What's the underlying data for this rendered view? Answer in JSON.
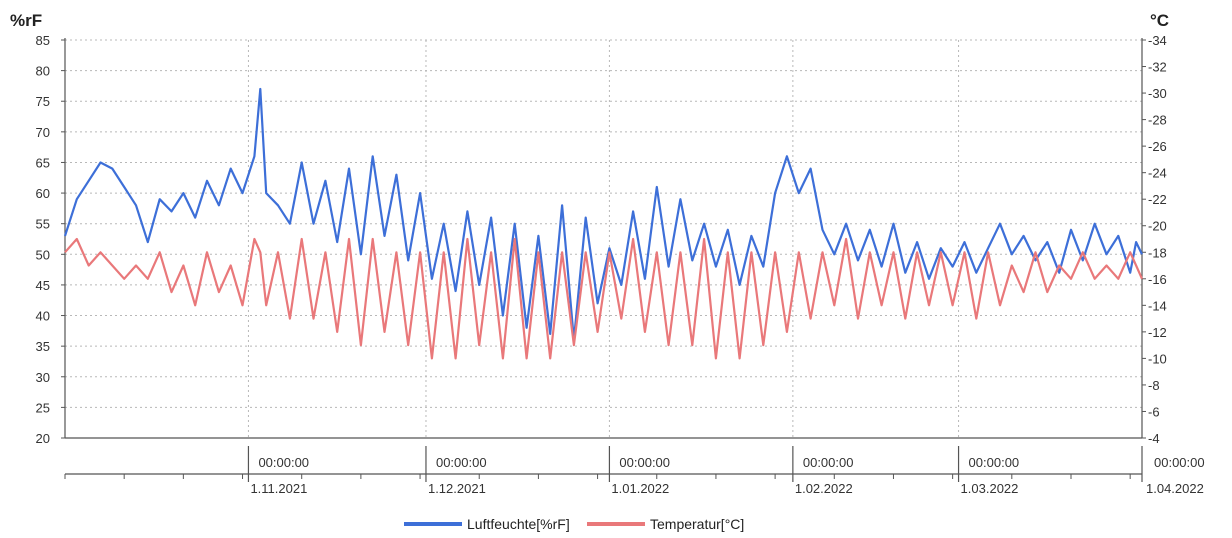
{
  "chart_data": {
    "type": "line",
    "left_axis_label": "%rF",
    "right_axis_label": "°C",
    "left_ylim": [
      20,
      85
    ],
    "right_ylim": [
      4,
      34
    ],
    "left_ticks": [
      20,
      25,
      30,
      35,
      40,
      45,
      50,
      55,
      60,
      65,
      70,
      75,
      80,
      85
    ],
    "right_ticks": [
      4,
      6,
      8,
      10,
      12,
      14,
      16,
      18,
      20,
      22,
      24,
      26,
      28,
      30,
      32,
      34
    ],
    "x_range": [
      "2021-10-01",
      "2022-04-01"
    ],
    "x_ticks": [
      {
        "date": "2021-11-01",
        "time": "00:00:00",
        "label": "1.11.2021"
      },
      {
        "date": "2021-12-01",
        "time": "00:00:00",
        "label": "1.12.2021"
      },
      {
        "date": "2022-01-01",
        "time": "00:00:00",
        "label": "1.01.2022"
      },
      {
        "date": "2022-02-01",
        "time": "00:00:00",
        "label": "1.02.2022"
      },
      {
        "date": "2022-03-01",
        "time": "00:00:00",
        "label": "1.03.2022"
      },
      {
        "date": "2022-04-01",
        "time": "00:00:00",
        "label": "1.04.2022"
      }
    ],
    "grid": true,
    "legend_position": "bottom-center",
    "series": [
      {
        "name": "Luftfeuchte[%rF]",
        "axis": "left",
        "color": "#3d6fd8",
        "points": [
          [
            "2021-10-01",
            53
          ],
          [
            "2021-10-03",
            59
          ],
          [
            "2021-10-05",
            62
          ],
          [
            "2021-10-07",
            65
          ],
          [
            "2021-10-09",
            64
          ],
          [
            "2021-10-11",
            61
          ],
          [
            "2021-10-13",
            58
          ],
          [
            "2021-10-15",
            52
          ],
          [
            "2021-10-17",
            59
          ],
          [
            "2021-10-19",
            57
          ],
          [
            "2021-10-21",
            60
          ],
          [
            "2021-10-23",
            56
          ],
          [
            "2021-10-25",
            62
          ],
          [
            "2021-10-27",
            58
          ],
          [
            "2021-10-29",
            64
          ],
          [
            "2021-10-31",
            60
          ],
          [
            "2021-11-02",
            66
          ],
          [
            "2021-11-03",
            77
          ],
          [
            "2021-11-04",
            60
          ],
          [
            "2021-11-06",
            58
          ],
          [
            "2021-11-08",
            55
          ],
          [
            "2021-11-10",
            65
          ],
          [
            "2021-11-12",
            55
          ],
          [
            "2021-11-14",
            62
          ],
          [
            "2021-11-16",
            52
          ],
          [
            "2021-11-18",
            64
          ],
          [
            "2021-11-20",
            50
          ],
          [
            "2021-11-22",
            66
          ],
          [
            "2021-11-24",
            53
          ],
          [
            "2021-11-26",
            63
          ],
          [
            "2021-11-28",
            49
          ],
          [
            "2021-11-30",
            60
          ],
          [
            "2021-12-02",
            46
          ],
          [
            "2021-12-04",
            55
          ],
          [
            "2021-12-06",
            44
          ],
          [
            "2021-12-08",
            57
          ],
          [
            "2021-12-10",
            45
          ],
          [
            "2021-12-12",
            56
          ],
          [
            "2021-12-14",
            40
          ],
          [
            "2021-12-16",
            55
          ],
          [
            "2021-12-18",
            38
          ],
          [
            "2021-12-20",
            53
          ],
          [
            "2021-12-22",
            37
          ],
          [
            "2021-12-24",
            58
          ],
          [
            "2021-12-26",
            36
          ],
          [
            "2021-12-28",
            56
          ],
          [
            "2021-12-30",
            42
          ],
          [
            "2022-01-01",
            51
          ],
          [
            "2022-01-03",
            45
          ],
          [
            "2022-01-05",
            57
          ],
          [
            "2022-01-07",
            46
          ],
          [
            "2022-01-09",
            61
          ],
          [
            "2022-01-11",
            48
          ],
          [
            "2022-01-13",
            59
          ],
          [
            "2022-01-15",
            49
          ],
          [
            "2022-01-17",
            55
          ],
          [
            "2022-01-19",
            48
          ],
          [
            "2022-01-21",
            54
          ],
          [
            "2022-01-23",
            45
          ],
          [
            "2022-01-25",
            53
          ],
          [
            "2022-01-27",
            48
          ],
          [
            "2022-01-29",
            60
          ],
          [
            "2022-01-31",
            66
          ],
          [
            "2022-02-02",
            60
          ],
          [
            "2022-02-04",
            64
          ],
          [
            "2022-02-06",
            54
          ],
          [
            "2022-02-08",
            50
          ],
          [
            "2022-02-10",
            55
          ],
          [
            "2022-02-12",
            49
          ],
          [
            "2022-02-14",
            54
          ],
          [
            "2022-02-16",
            48
          ],
          [
            "2022-02-18",
            55
          ],
          [
            "2022-02-20",
            47
          ],
          [
            "2022-02-22",
            52
          ],
          [
            "2022-02-24",
            46
          ],
          [
            "2022-02-26",
            51
          ],
          [
            "2022-02-28",
            48
          ],
          [
            "2022-03-02",
            52
          ],
          [
            "2022-03-04",
            47
          ],
          [
            "2022-03-06",
            51
          ],
          [
            "2022-03-08",
            55
          ],
          [
            "2022-03-10",
            50
          ],
          [
            "2022-03-12",
            53
          ],
          [
            "2022-03-14",
            49
          ],
          [
            "2022-03-16",
            52
          ],
          [
            "2022-03-18",
            47
          ],
          [
            "2022-03-20",
            54
          ],
          [
            "2022-03-22",
            49
          ],
          [
            "2022-03-24",
            55
          ],
          [
            "2022-03-26",
            50
          ],
          [
            "2022-03-28",
            53
          ],
          [
            "2022-03-30",
            47
          ],
          [
            "2022-03-31",
            52
          ],
          [
            "2022-04-01",
            50
          ]
        ]
      },
      {
        "name": "Temperatur[°C]",
        "axis": "right",
        "color": "#e9787a",
        "points": [
          [
            "2021-10-01",
            18
          ],
          [
            "2021-10-03",
            19
          ],
          [
            "2021-10-05",
            17
          ],
          [
            "2021-10-07",
            18
          ],
          [
            "2021-10-09",
            17
          ],
          [
            "2021-10-11",
            16
          ],
          [
            "2021-10-13",
            17
          ],
          [
            "2021-10-15",
            16
          ],
          [
            "2021-10-17",
            18
          ],
          [
            "2021-10-19",
            15
          ],
          [
            "2021-10-21",
            17
          ],
          [
            "2021-10-23",
            14
          ],
          [
            "2021-10-25",
            18
          ],
          [
            "2021-10-27",
            15
          ],
          [
            "2021-10-29",
            17
          ],
          [
            "2021-10-31",
            14
          ],
          [
            "2021-11-02",
            19
          ],
          [
            "2021-11-03",
            18
          ],
          [
            "2021-11-04",
            14
          ],
          [
            "2021-11-06",
            18
          ],
          [
            "2021-11-08",
            13
          ],
          [
            "2021-11-10",
            19
          ],
          [
            "2021-11-12",
            13
          ],
          [
            "2021-11-14",
            18
          ],
          [
            "2021-11-16",
            12
          ],
          [
            "2021-11-18",
            19
          ],
          [
            "2021-11-20",
            11
          ],
          [
            "2021-11-22",
            19
          ],
          [
            "2021-11-24",
            12
          ],
          [
            "2021-11-26",
            18
          ],
          [
            "2021-11-28",
            11
          ],
          [
            "2021-11-30",
            18
          ],
          [
            "2021-12-02",
            10
          ],
          [
            "2021-12-04",
            18
          ],
          [
            "2021-12-06",
            10
          ],
          [
            "2021-12-08",
            19
          ],
          [
            "2021-12-10",
            11
          ],
          [
            "2021-12-12",
            18
          ],
          [
            "2021-12-14",
            10
          ],
          [
            "2021-12-16",
            19
          ],
          [
            "2021-12-18",
            10
          ],
          [
            "2021-12-20",
            18
          ],
          [
            "2021-12-22",
            10
          ],
          [
            "2021-12-24",
            18
          ],
          [
            "2021-12-26",
            11
          ],
          [
            "2021-12-28",
            18
          ],
          [
            "2021-12-30",
            12
          ],
          [
            "2022-01-01",
            18
          ],
          [
            "2022-01-03",
            13
          ],
          [
            "2022-01-05",
            19
          ],
          [
            "2022-01-07",
            12
          ],
          [
            "2022-01-09",
            18
          ],
          [
            "2022-01-11",
            11
          ],
          [
            "2022-01-13",
            18
          ],
          [
            "2022-01-15",
            11
          ],
          [
            "2022-01-17",
            19
          ],
          [
            "2022-01-19",
            10
          ],
          [
            "2022-01-21",
            18
          ],
          [
            "2022-01-23",
            10
          ],
          [
            "2022-01-25",
            18
          ],
          [
            "2022-01-27",
            11
          ],
          [
            "2022-01-29",
            18
          ],
          [
            "2022-01-31",
            12
          ],
          [
            "2022-02-02",
            18
          ],
          [
            "2022-02-04",
            13
          ],
          [
            "2022-02-06",
            18
          ],
          [
            "2022-02-08",
            14
          ],
          [
            "2022-02-10",
            19
          ],
          [
            "2022-02-12",
            13
          ],
          [
            "2022-02-14",
            18
          ],
          [
            "2022-02-16",
            14
          ],
          [
            "2022-02-18",
            18
          ],
          [
            "2022-02-20",
            13
          ],
          [
            "2022-02-22",
            18
          ],
          [
            "2022-02-24",
            14
          ],
          [
            "2022-02-26",
            18
          ],
          [
            "2022-02-28",
            14
          ],
          [
            "2022-03-02",
            18
          ],
          [
            "2022-03-04",
            13
          ],
          [
            "2022-03-06",
            18
          ],
          [
            "2022-03-08",
            14
          ],
          [
            "2022-03-10",
            17
          ],
          [
            "2022-03-12",
            15
          ],
          [
            "2022-03-14",
            18
          ],
          [
            "2022-03-16",
            15
          ],
          [
            "2022-03-18",
            17
          ],
          [
            "2022-03-20",
            16
          ],
          [
            "2022-03-22",
            18
          ],
          [
            "2022-03-24",
            16
          ],
          [
            "2022-03-26",
            17
          ],
          [
            "2022-03-28",
            16
          ],
          [
            "2022-03-30",
            18
          ],
          [
            "2022-03-31",
            17
          ],
          [
            "2022-04-01",
            16
          ]
        ]
      }
    ]
  }
}
